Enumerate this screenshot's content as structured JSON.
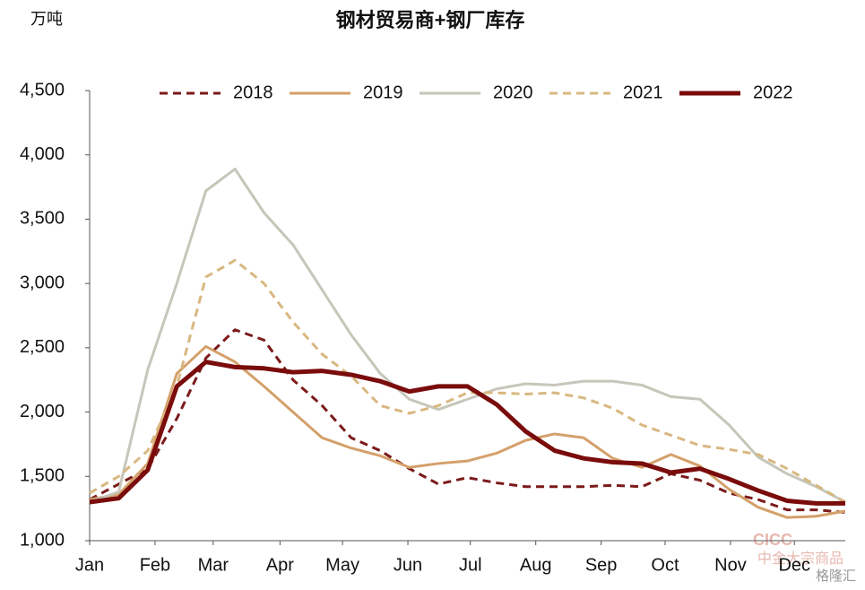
{
  "chart_data": {
    "type": "line",
    "title": "钢材贸易商+钢厂库存",
    "y_unit": "万吨",
    "x": [
      1,
      3,
      5,
      7,
      9,
      11,
      13,
      15,
      17,
      19,
      21,
      23,
      25,
      27,
      29,
      31,
      33,
      35,
      37,
      39,
      41,
      43,
      45,
      47,
      49,
      51,
      53
    ],
    "xlim": [
      1,
      53
    ],
    "xticks": [
      {
        "value": 1,
        "label": "Jan"
      },
      {
        "value": 5.5,
        "label": "Feb"
      },
      {
        "value": 9.5,
        "label": "Mar"
      },
      {
        "value": 14.1,
        "label": "Apr"
      },
      {
        "value": 18.4,
        "label": "May"
      },
      {
        "value": 22.9,
        "label": "Jun"
      },
      {
        "value": 27.2,
        "label": "Jul"
      },
      {
        "value": 31.7,
        "label": "Aug"
      },
      {
        "value": 36.2,
        "label": "Sep"
      },
      {
        "value": 40.6,
        "label": "Oct"
      },
      {
        "value": 45.1,
        "label": "Nov"
      },
      {
        "value": 49.5,
        "label": "Dec"
      }
    ],
    "ylim": [
      1000,
      4500
    ],
    "yticks": [
      {
        "value": 1000,
        "label": "1,000"
      },
      {
        "value": 1500,
        "label": "1,500"
      },
      {
        "value": 2000,
        "label": "2,000"
      },
      {
        "value": 2500,
        "label": "2,500"
      },
      {
        "value": 3000,
        "label": "3,000"
      },
      {
        "value": 3500,
        "label": "3,500"
      },
      {
        "value": 4000,
        "label": "4,000"
      },
      {
        "value": 4500,
        "label": "4,500"
      }
    ],
    "legend": "top",
    "series": [
      {
        "name": "2018",
        "color": "#7b1a1a",
        "dashed": true,
        "width": 3,
        "values": [
          1320,
          1440,
          1560,
          1950,
          2420,
          2640,
          2560,
          2250,
          2050,
          1800,
          1700,
          1560,
          1440,
          1490,
          1450,
          1420,
          1420,
          1420,
          1430,
          1420,
          1520,
          1470,
          1370,
          1320,
          1240,
          1240,
          1220
        ]
      },
      {
        "name": "2019",
        "color": "#d4a06a",
        "dashed": false,
        "width": 3,
        "values": [
          1320,
          1360,
          1600,
          2300,
          2510,
          2390,
          2200,
          2000,
          1800,
          1720,
          1660,
          1570,
          1600,
          1620,
          1680,
          1780,
          1830,
          1800,
          1640,
          1570,
          1670,
          1580,
          1400,
          1260,
          1180,
          1190,
          1230
        ]
      },
      {
        "name": "2020",
        "color": "#c6c6ba",
        "dashed": false,
        "width": 3,
        "values": [
          1300,
          1380,
          2330,
          3000,
          3720,
          3890,
          3550,
          3300,
          2950,
          2600,
          2300,
          2100,
          2020,
          2100,
          2180,
          2220,
          2210,
          2240,
          2240,
          2210,
          2120,
          2100,
          1900,
          1650,
          1520,
          1420,
          1300
        ]
      },
      {
        "name": "2021",
        "color": "#d8b880",
        "dashed": true,
        "width": 3,
        "values": [
          1370,
          1500,
          1700,
          2200,
          3050,
          3180,
          3000,
          2700,
          2450,
          2280,
          2050,
          1990,
          2050,
          2150,
          2150,
          2140,
          2150,
          2110,
          2030,
          1900,
          1820,
          1740,
          1710,
          1670,
          1560,
          1430,
          1300
        ]
      },
      {
        "name": "2022",
        "color": "#7a0c0c",
        "dashed": false,
        "width": 5,
        "values": [
          1300,
          1330,
          1550,
          2200,
          2390,
          2350,
          2340,
          2310,
          2320,
          2290,
          2240,
          2160,
          2200,
          2200,
          2060,
          1850,
          1700,
          1640,
          1610,
          1600,
          1530,
          1560,
          1480,
          1390,
          1310,
          1290,
          1290
        ]
      }
    ],
    "watermark": [
      "CICC",
      "中金大宗商品",
      "格隆汇"
    ]
  }
}
